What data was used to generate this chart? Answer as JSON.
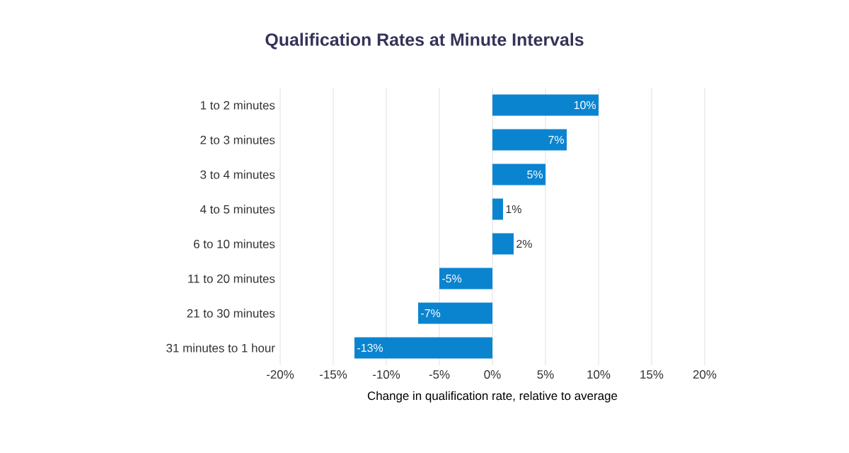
{
  "chart_data": {
    "type": "bar",
    "orientation": "horizontal",
    "title": "Qualification Rates at Minute Intervals",
    "xlabel": "Change in qualification rate, relative to average",
    "categories": [
      "1 to 2 minutes",
      "2 to 3 minutes",
      "3 to 4 minutes",
      "4 to 5 minutes",
      "6 to 10 minutes",
      "11 to 20 minutes",
      "21 to 30 minutes",
      "31 minutes to 1 hour"
    ],
    "values": [
      10,
      7,
      5,
      1,
      2,
      -5,
      -7,
      -13
    ],
    "value_labels": [
      "10%",
      "7%",
      "5%",
      "1%",
      "2%",
      "-5%",
      "-7%",
      "-13%"
    ],
    "color": "#0b84d0",
    "xlim": [
      -20,
      20
    ],
    "xticks": [
      {
        "value": -20,
        "label": "-20%"
      },
      {
        "value": -15,
        "label": "-15%"
      },
      {
        "value": -10,
        "label": "-10%"
      },
      {
        "value": -5,
        "label": "-5%"
      },
      {
        "value": 0,
        "label": "0%"
      },
      {
        "value": 5,
        "label": "5%"
      },
      {
        "value": 10,
        "label": "10%"
      },
      {
        "value": 15,
        "label": "15%"
      },
      {
        "value": 20,
        "label": "20%"
      }
    ],
    "grid": "x"
  }
}
